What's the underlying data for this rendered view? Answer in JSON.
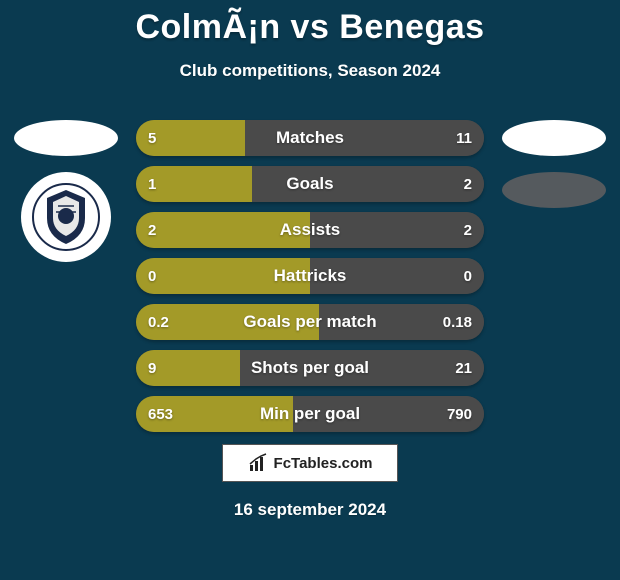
{
  "background_color": "#0a3a50",
  "text_color": "#ffffff",
  "title": "ColmÃ¡n vs Benegas",
  "subtitle": "Club competitions, Season 2024",
  "date": "16 september 2024",
  "left_side": {
    "oval_color": "#ffffff",
    "show_logo": true
  },
  "right_side": {
    "oval_colors": [
      "#ffffff",
      "#555a5e"
    ]
  },
  "bar_left_color": "#a39a28",
  "bar_right_color": "#4a4a4a",
  "bars": [
    {
      "label": "Matches",
      "left": "5",
      "right": "11",
      "left_num": 5,
      "right_num": 11
    },
    {
      "label": "Goals",
      "left": "1",
      "right": "2",
      "left_num": 1,
      "right_num": 2
    },
    {
      "label": "Assists",
      "left": "2",
      "right": "2",
      "left_num": 2,
      "right_num": 2
    },
    {
      "label": "Hattricks",
      "left": "0",
      "right": "0",
      "left_num": 0,
      "right_num": 0
    },
    {
      "label": "Goals per match",
      "left": "0.2",
      "right": "0.18",
      "left_num": 0.2,
      "right_num": 0.18
    },
    {
      "label": "Shots per goal",
      "left": "9",
      "right": "21",
      "left_num": 9,
      "right_num": 21
    },
    {
      "label": "Min per goal",
      "left": "653",
      "right": "790",
      "left_num": 653,
      "right_num": 790
    }
  ],
  "footer_brand": "FcTables.com"
}
